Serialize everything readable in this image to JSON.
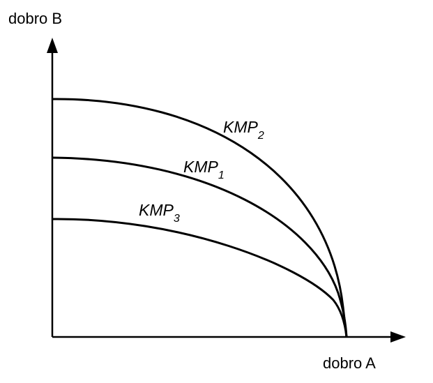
{
  "axes": {
    "y_label": "dobro B",
    "x_label": "dobro A"
  },
  "curves": [
    {
      "base": "KMP",
      "sub": "2"
    },
    {
      "base": "KMP",
      "sub": "1"
    },
    {
      "base": "KMP",
      "sub": "3"
    }
  ]
}
